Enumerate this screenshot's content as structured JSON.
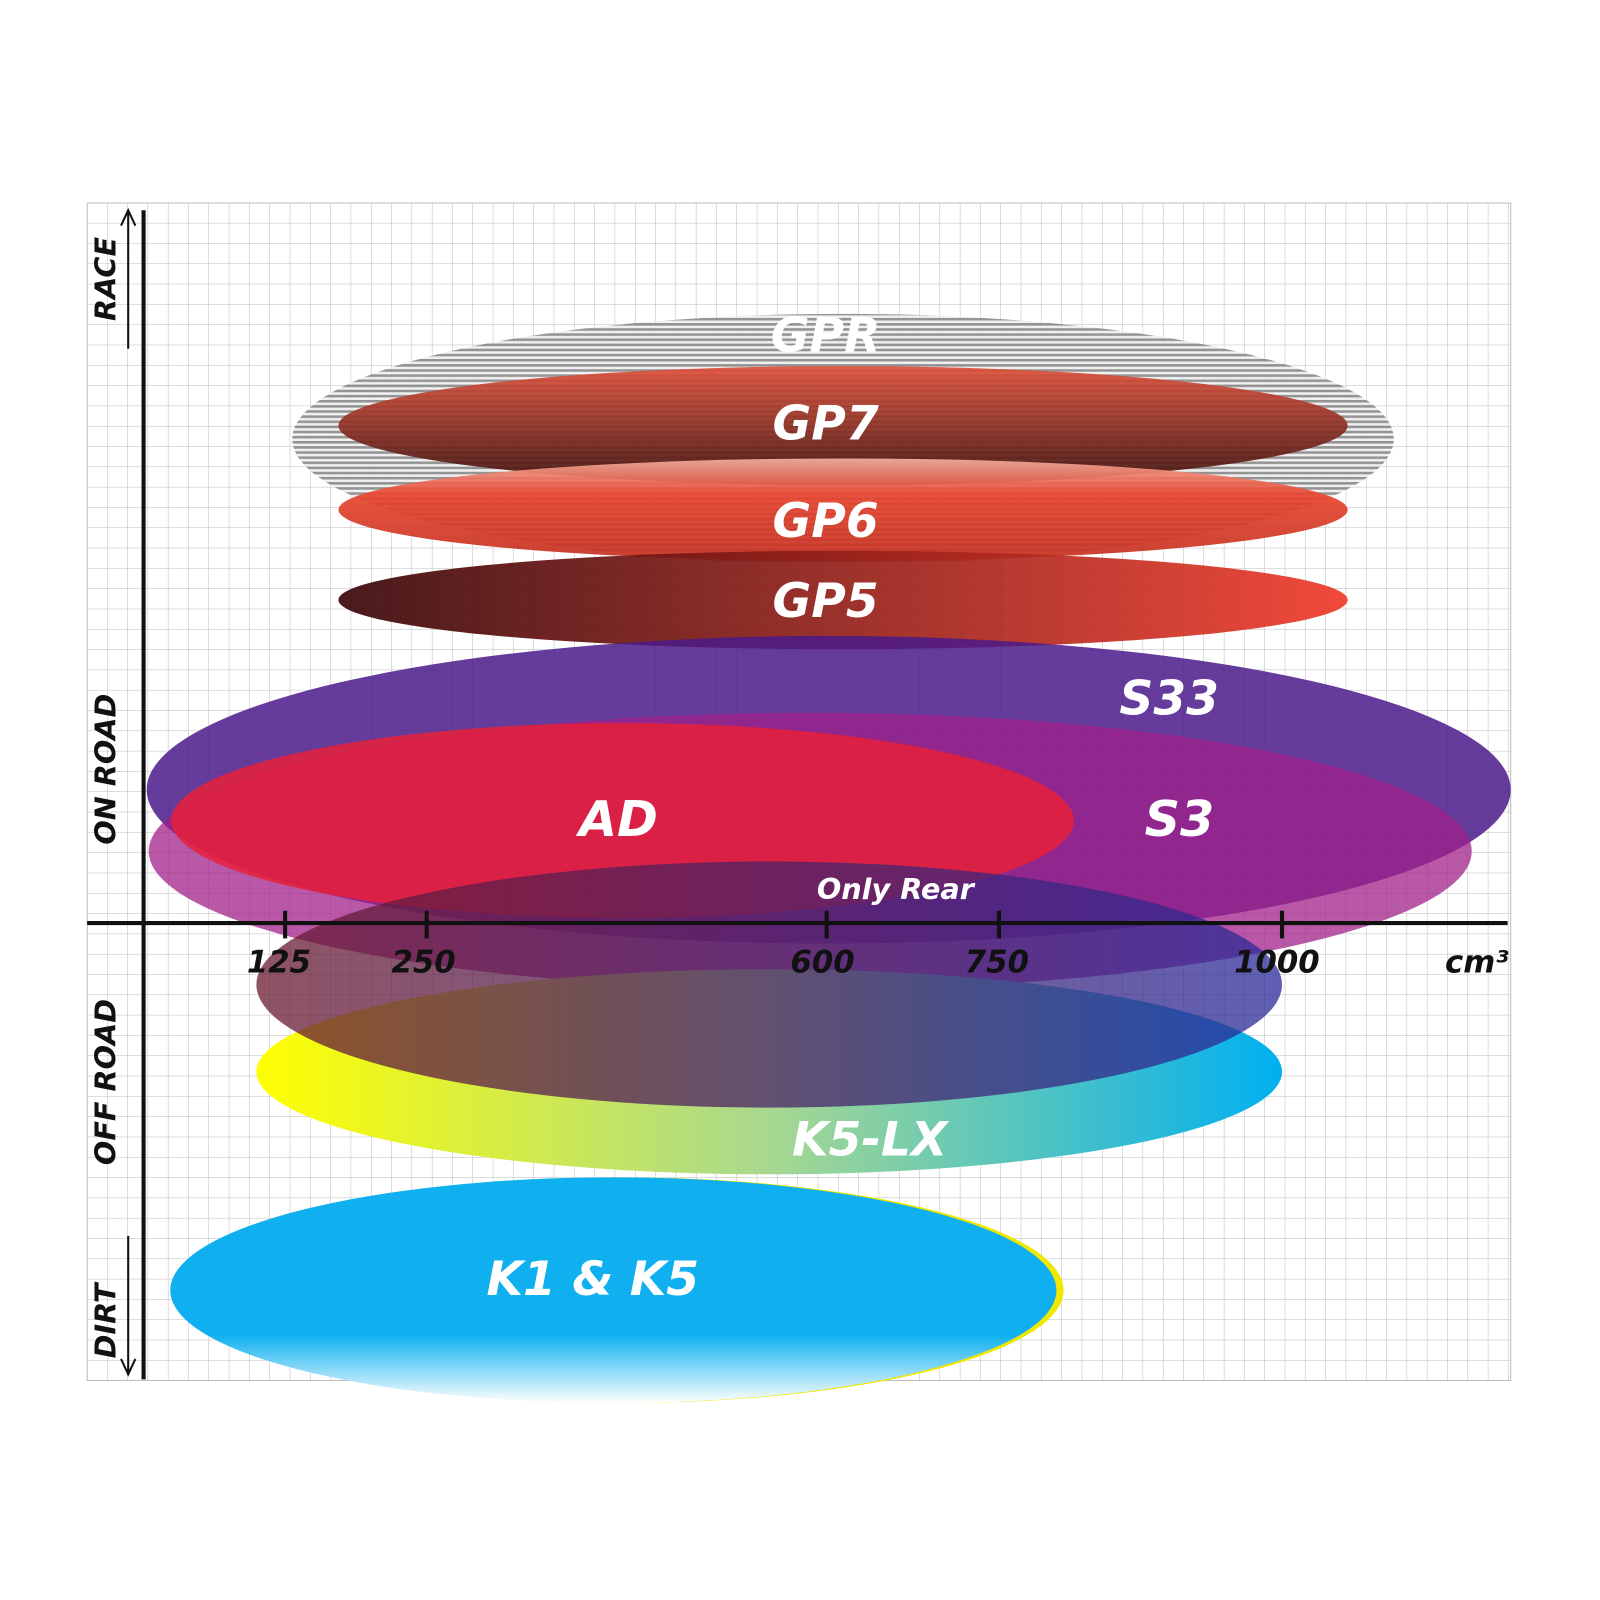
{
  "axis_labels": {
    "top": "RACE",
    "upper": "ON ROAD",
    "lower": "OFF ROAD",
    "bottom": "DIRT"
  },
  "x_ticks": [
    "125",
    "250",
    "600",
    "750",
    "1000"
  ],
  "x_unit": "cm³",
  "tyres": [
    {
      "label": "GPR"
    },
    {
      "label": "GP7"
    },
    {
      "label": "GP6"
    },
    {
      "label": "GP5"
    },
    {
      "label": "S33"
    },
    {
      "label": "AD"
    },
    {
      "label": "S3"
    },
    {
      "label": "K5-LX"
    },
    {
      "label": "K1 & K5"
    }
  ],
  "note": "Only Rear"
}
